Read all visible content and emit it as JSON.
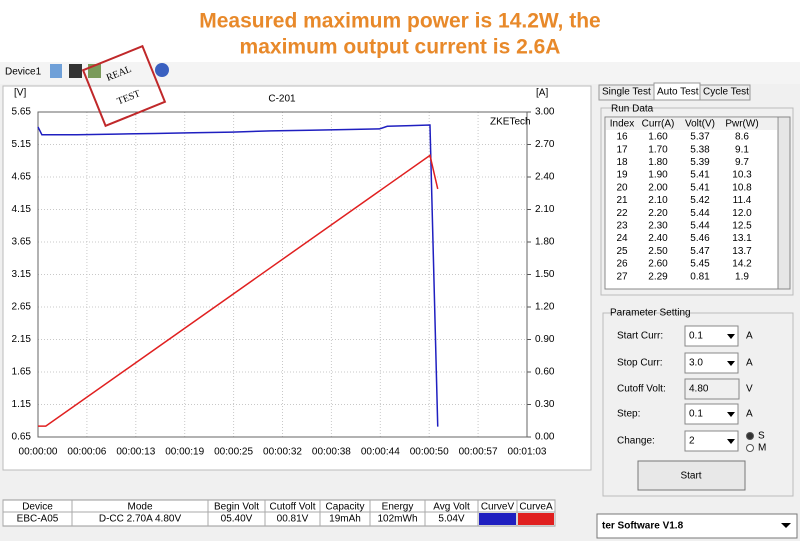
{
  "header": {
    "title_lines": [
      "Measured maximum power is 14.2W, the",
      "maximum output current is 2.6A"
    ]
  },
  "toolbar": {
    "device": "Device1",
    "stamp": [
      "REAL",
      "TEST"
    ]
  },
  "chart_data": {
    "type": "line",
    "title": "C-201",
    "watermark": "ZKETech",
    "y_label": "[V]",
    "y2_label": "[A]",
    "xlim": [
      0,
      63
    ],
    "xticks": [
      {
        "value": 0,
        "label": "00:00:00"
      },
      {
        "value": 6.3,
        "label": "00:00:06"
      },
      {
        "value": 12.6,
        "label": "00:00:13"
      },
      {
        "value": 18.9,
        "label": "00:00:19"
      },
      {
        "value": 25.2,
        "label": "00:00:25"
      },
      {
        "value": 31.5,
        "label": "00:00:32"
      },
      {
        "value": 37.8,
        "label": "00:00:38"
      },
      {
        "value": 44.1,
        "label": "00:00:44"
      },
      {
        "value": 50.4,
        "label": "00:00:50"
      },
      {
        "value": 56.7,
        "label": "00:00:57"
      },
      {
        "value": 63,
        "label": "00:01:03"
      }
    ],
    "ylim": [
      0.65,
      5.65
    ],
    "yticks": [
      0.65,
      1.15,
      1.65,
      2.15,
      2.65,
      3.15,
      3.65,
      4.15,
      4.65,
      5.15,
      5.65
    ],
    "y2lim": [
      0,
      3
    ],
    "y2ticks": [
      {
        "value": 0,
        "label": "0.00"
      },
      {
        "value": 0.3,
        "label": "0.30"
      },
      {
        "value": 0.6,
        "label": "0.60"
      },
      {
        "value": 0.9,
        "label": "0.90"
      },
      {
        "value": 1.2,
        "label": "1.20"
      },
      {
        "value": 1.5,
        "label": "1.50"
      },
      {
        "value": 1.8,
        "label": "1.80"
      },
      {
        "value": 2.1,
        "label": "2.10"
      },
      {
        "value": 2.4,
        "label": "2.40"
      },
      {
        "value": 2.7,
        "label": "2.70"
      },
      {
        "value": 3,
        "label": "3.00"
      }
    ],
    "grid": true,
    "series": [
      {
        "name": "CurveV",
        "color": "#1f1fc0",
        "x": [
          0,
          0.5,
          5,
          10,
          15,
          20,
          25,
          30,
          35,
          40,
          44,
          45,
          48,
          50.5,
          51.5
        ],
        "values": [
          5.42,
          5.3,
          5.3,
          5.31,
          5.32,
          5.33,
          5.34,
          5.36,
          5.37,
          5.38,
          5.39,
          5.43,
          5.44,
          5.45,
          0.81
        ]
      },
      {
        "name": "CurveA",
        "color": "#e02020",
        "axis": "y2",
        "x": [
          0,
          1,
          50.5,
          51.5
        ],
        "values": [
          0.1,
          0.1,
          2.6,
          2.29
        ]
      }
    ]
  },
  "tabs": [
    "Single Test",
    "Auto Test",
    "Cycle Test"
  ],
  "run_data": {
    "title": "Run Data",
    "columns": [
      "Index",
      "Curr(A)",
      "Volt(V)",
      "Pwr(W)"
    ],
    "rows": [
      [
        "16",
        "1.60",
        "5.37",
        "8.6"
      ],
      [
        "17",
        "1.70",
        "5.38",
        "9.1"
      ],
      [
        "18",
        "1.80",
        "5.39",
        "9.7"
      ],
      [
        "19",
        "1.90",
        "5.41",
        "10.3"
      ],
      [
        "20",
        "2.00",
        "5.41",
        "10.8"
      ],
      [
        "21",
        "2.10",
        "5.42",
        "11.4"
      ],
      [
        "22",
        "2.20",
        "5.44",
        "12.0"
      ],
      [
        "23",
        "2.30",
        "5.44",
        "12.5"
      ],
      [
        "24",
        "2.40",
        "5.46",
        "13.1"
      ],
      [
        "25",
        "2.50",
        "5.47",
        "13.7"
      ],
      [
        "26",
        "2.60",
        "5.45",
        "14.2"
      ],
      [
        "27",
        "2.29",
        "0.81",
        "1.9"
      ]
    ]
  },
  "parameters": {
    "title": "Parameter Setting",
    "rows": [
      {
        "label": "Start Curr:",
        "value": "0.1",
        "unit": "A",
        "dropdown": true
      },
      {
        "label": "Stop Curr:",
        "value": "3.0",
        "unit": "A",
        "dropdown": true
      },
      {
        "label": "Cutoff Volt:",
        "value": "4.80",
        "unit": "V",
        "dropdown": false
      },
      {
        "label": "Step:",
        "value": "0.1",
        "unit": "A",
        "dropdown": true
      },
      {
        "label": "Change:",
        "value": "2",
        "dropdown": true
      }
    ],
    "options": [
      "S",
      "M"
    ],
    "button": "Start"
  },
  "summary": {
    "columns": [
      "Device",
      "Mode",
      "Begin Volt",
      "Cutoff Volt",
      "Capacity",
      "Energy",
      "Avg Volt"
    ],
    "row": [
      "EBC-A05",
      "D-CC 2.70A  4.80V",
      "05.40V",
      "00.81V",
      "19mAh",
      "102mWh",
      "5.04V"
    ]
  },
  "footer": "ter Software V1.8"
}
